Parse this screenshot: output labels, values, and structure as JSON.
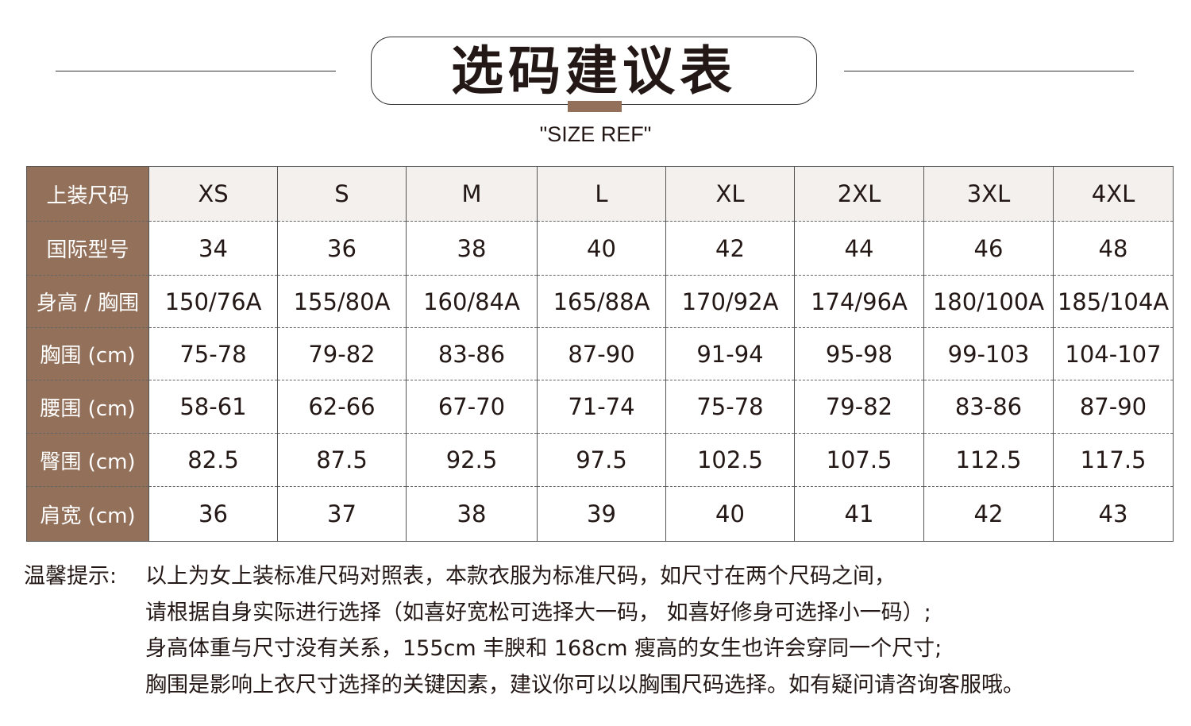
{
  "header": {
    "title": "选码建议表",
    "subtitle": "\"SIZE REF\"",
    "accent_color": "#93705a"
  },
  "table": {
    "rows": [
      {
        "label": "上装尺码",
        "values": [
          "XS",
          "S",
          "M",
          "L",
          "XL",
          "2XL",
          "3XL",
          "4XL"
        ]
      },
      {
        "label": "国际型号",
        "values": [
          "34",
          "36",
          "38",
          "40",
          "42",
          "44",
          "46",
          "48"
        ]
      },
      {
        "label": "身高 / 胸围",
        "values": [
          "150/76A",
          "155/80A",
          "160/84A",
          "165/88A",
          "170/92A",
          "174/96A",
          "180/100A",
          "185/104A"
        ]
      },
      {
        "label": "胸围 (cm)",
        "values": [
          "75-78",
          "79-82",
          "83-86",
          "87-90",
          "91-94",
          "95-98",
          "99-103",
          "104-107"
        ]
      },
      {
        "label": "腰围 (cm)",
        "values": [
          "58-61",
          "62-66",
          "67-70",
          "71-74",
          "75-78",
          "79-82",
          "83-86",
          "87-90"
        ]
      },
      {
        "label": "臀围 (cm)",
        "values": [
          "82.5",
          "87.5",
          "92.5",
          "97.5",
          "102.5",
          "107.5",
          "112.5",
          "117.5"
        ]
      },
      {
        "label": "肩宽 (cm)",
        "values": [
          "36",
          "37",
          "38",
          "39",
          "40",
          "41",
          "42",
          "43"
        ]
      }
    ]
  },
  "notes": {
    "label": "温馨提示:",
    "lines": [
      "以上为女上装标准尺码对照表，本款衣服为标准尺码，如尺寸在两个尺码之间，",
      "请根据自身实际进行选择（如喜好宽松可选择大一码， 如喜好修身可选择小一码）;",
      "身高体重与尺寸没有关系，155cm 丰腴和 168cm 瘦高的女生也许会穿同一个尺寸;",
      "胸围是影响上衣尺寸选择的关键因素，建议你可以以胸围尺码选择。如有疑问请咨询客服哦。"
    ]
  }
}
